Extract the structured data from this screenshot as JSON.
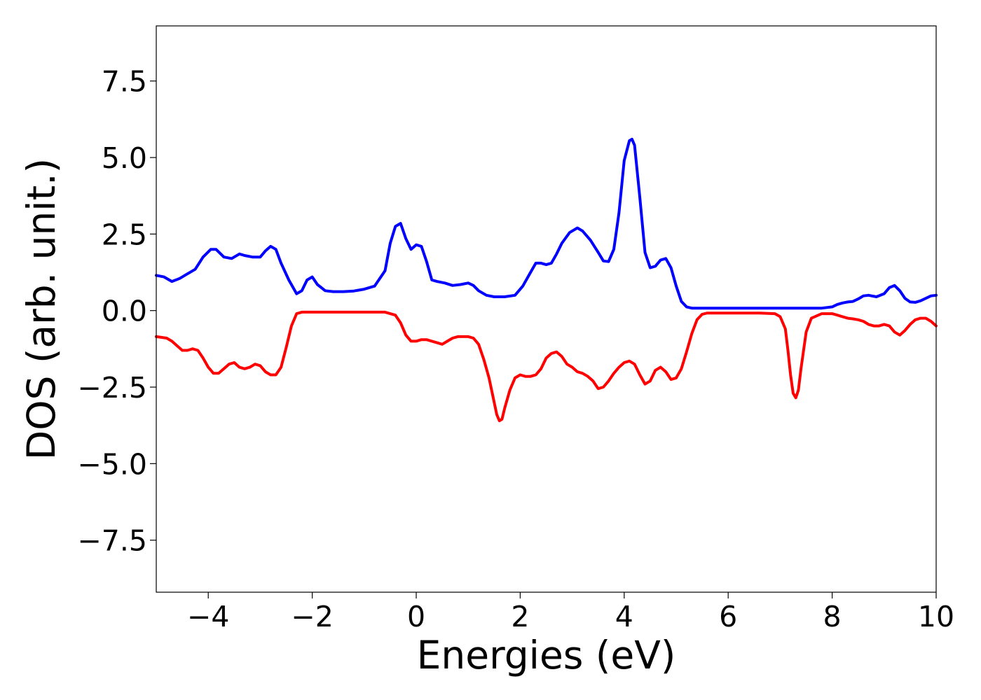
{
  "chart_data": {
    "type": "line",
    "title": "",
    "xlabel": "Energies (eV)",
    "ylabel": "DOS (arb. unit.)",
    "xlim": [
      -5,
      10
    ],
    "ylim": [
      -9.2,
      9.3
    ],
    "grid": false,
    "legend": "none",
    "xticks": [
      -4,
      -2,
      0,
      2,
      4,
      6,
      8,
      10
    ],
    "xtick_labels": [
      "−4",
      "−2",
      "0",
      "2",
      "4",
      "6",
      "8",
      "10"
    ],
    "yticks": [
      -7.5,
      -5.0,
      -2.5,
      0.0,
      2.5,
      5.0,
      7.5
    ],
    "ytick_labels": [
      "−7.5",
      "−5.0",
      "−2.5",
      "0.0",
      "2.5",
      "5.0",
      "7.5"
    ],
    "series": [
      {
        "color": "#0000ff",
        "x": [
          -5.0,
          -4.85,
          -4.7,
          -4.55,
          -4.4,
          -4.25,
          -4.1,
          -3.95,
          -3.85,
          -3.7,
          -3.55,
          -3.4,
          -3.3,
          -3.15,
          -3.0,
          -2.9,
          -2.8,
          -2.7,
          -2.6,
          -2.45,
          -2.3,
          -2.2,
          -2.1,
          -2.0,
          -1.9,
          -1.75,
          -1.6,
          -1.4,
          -1.2,
          -1.0,
          -0.8,
          -0.6,
          -0.5,
          -0.4,
          -0.3,
          -0.2,
          -0.1,
          0.0,
          0.1,
          0.2,
          0.3,
          0.4,
          0.55,
          0.7,
          0.85,
          1.0,
          1.1,
          1.2,
          1.35,
          1.5,
          1.7,
          1.9,
          2.05,
          2.2,
          2.3,
          2.4,
          2.5,
          2.6,
          2.7,
          2.8,
          2.95,
          3.1,
          3.2,
          3.35,
          3.5,
          3.6,
          3.7,
          3.8,
          3.9,
          4.0,
          4.1,
          4.15,
          4.2,
          4.3,
          4.4,
          4.5,
          4.6,
          4.7,
          4.8,
          4.9,
          5.0,
          5.1,
          5.2,
          5.3,
          5.5,
          6.0,
          6.5,
          7.0,
          7.5,
          7.8,
          8.0,
          8.1,
          8.2,
          8.3,
          8.4,
          8.5,
          8.6,
          8.7,
          8.85,
          9.0,
          9.1,
          9.2,
          9.3,
          9.4,
          9.5,
          9.6,
          9.7,
          9.8,
          9.9,
          10.0
        ],
        "y": [
          1.15,
          1.1,
          0.95,
          1.05,
          1.2,
          1.35,
          1.75,
          2.0,
          2.0,
          1.75,
          1.7,
          1.85,
          1.8,
          1.75,
          1.75,
          1.95,
          2.1,
          2.0,
          1.55,
          1.0,
          0.55,
          0.65,
          1.0,
          1.1,
          0.85,
          0.65,
          0.62,
          0.62,
          0.64,
          0.7,
          0.8,
          1.3,
          2.2,
          2.75,
          2.85,
          2.35,
          2.0,
          2.15,
          2.1,
          1.6,
          1.0,
          0.95,
          0.9,
          0.82,
          0.85,
          0.9,
          0.82,
          0.65,
          0.5,
          0.45,
          0.45,
          0.5,
          0.8,
          1.25,
          1.55,
          1.55,
          1.5,
          1.55,
          1.85,
          2.2,
          2.55,
          2.7,
          2.6,
          2.3,
          1.9,
          1.62,
          1.6,
          2.0,
          3.2,
          4.9,
          5.55,
          5.6,
          5.4,
          3.7,
          1.9,
          1.4,
          1.45,
          1.65,
          1.7,
          1.4,
          0.8,
          0.3,
          0.12,
          0.08,
          0.08,
          0.08,
          0.08,
          0.08,
          0.08,
          0.08,
          0.12,
          0.2,
          0.25,
          0.28,
          0.3,
          0.38,
          0.48,
          0.5,
          0.45,
          0.55,
          0.75,
          0.82,
          0.65,
          0.4,
          0.28,
          0.27,
          0.32,
          0.4,
          0.48,
          0.5
        ]
      },
      {
        "color": "#ff0000",
        "x": [
          -5.0,
          -4.8,
          -4.7,
          -4.6,
          -4.5,
          -4.4,
          -4.3,
          -4.2,
          -4.1,
          -4.0,
          -3.9,
          -3.8,
          -3.7,
          -3.6,
          -3.5,
          -3.4,
          -3.3,
          -3.2,
          -3.1,
          -3.0,
          -2.9,
          -2.8,
          -2.7,
          -2.6,
          -2.5,
          -2.4,
          -2.3,
          -2.2,
          -2.1,
          -2.0,
          -1.8,
          -1.5,
          -1.0,
          -0.6,
          -0.4,
          -0.3,
          -0.2,
          -0.1,
          0.0,
          0.1,
          0.2,
          0.3,
          0.4,
          0.5,
          0.6,
          0.7,
          0.8,
          0.9,
          1.0,
          1.1,
          1.2,
          1.3,
          1.4,
          1.5,
          1.55,
          1.6,
          1.65,
          1.7,
          1.8,
          1.9,
          2.0,
          2.1,
          2.2,
          2.3,
          2.4,
          2.5,
          2.6,
          2.7,
          2.8,
          2.9,
          3.0,
          3.1,
          3.2,
          3.3,
          3.4,
          3.5,
          3.6,
          3.7,
          3.8,
          3.9,
          4.0,
          4.1,
          4.2,
          4.3,
          4.4,
          4.5,
          4.6,
          4.7,
          4.8,
          4.9,
          5.0,
          5.1,
          5.2,
          5.3,
          5.4,
          5.5,
          5.6,
          5.8,
          6.2,
          6.6,
          6.9,
          7.0,
          7.1,
          7.15,
          7.2,
          7.25,
          7.3,
          7.35,
          7.4,
          7.5,
          7.6,
          7.8,
          8.0,
          8.1,
          8.2,
          8.3,
          8.4,
          8.5,
          8.6,
          8.7,
          8.8,
          8.9,
          9.0,
          9.1,
          9.2,
          9.3,
          9.4,
          9.5,
          9.6,
          9.7,
          9.8,
          9.9,
          10.0
        ],
        "y": [
          -0.85,
          -0.9,
          -1.0,
          -1.15,
          -1.3,
          -1.3,
          -1.25,
          -1.3,
          -1.55,
          -1.85,
          -2.05,
          -2.05,
          -1.9,
          -1.75,
          -1.7,
          -1.85,
          -1.9,
          -1.85,
          -1.75,
          -1.8,
          -2.0,
          -2.1,
          -2.1,
          -1.85,
          -1.2,
          -0.5,
          -0.1,
          -0.05,
          -0.05,
          -0.05,
          -0.05,
          -0.05,
          -0.05,
          -0.05,
          -0.15,
          -0.4,
          -0.8,
          -1.0,
          -1.0,
          -0.95,
          -0.95,
          -1.0,
          -1.05,
          -1.1,
          -1.0,
          -0.9,
          -0.85,
          -0.85,
          -0.85,
          -0.9,
          -1.1,
          -1.6,
          -2.2,
          -3.0,
          -3.4,
          -3.6,
          -3.55,
          -3.2,
          -2.6,
          -2.2,
          -2.1,
          -2.15,
          -2.15,
          -2.1,
          -1.9,
          -1.55,
          -1.4,
          -1.35,
          -1.5,
          -1.75,
          -1.85,
          -2.0,
          -2.05,
          -2.15,
          -2.3,
          -2.55,
          -2.5,
          -2.3,
          -2.05,
          -1.85,
          -1.7,
          -1.65,
          -1.75,
          -2.1,
          -2.4,
          -2.3,
          -1.95,
          -1.85,
          -2.0,
          -2.25,
          -2.2,
          -1.9,
          -1.35,
          -0.75,
          -0.3,
          -0.12,
          -0.08,
          -0.08,
          -0.08,
          -0.08,
          -0.1,
          -0.2,
          -0.6,
          -1.3,
          -2.1,
          -2.7,
          -2.85,
          -2.6,
          -1.9,
          -0.7,
          -0.25,
          -0.1,
          -0.1,
          -0.15,
          -0.2,
          -0.25,
          -0.27,
          -0.3,
          -0.35,
          -0.45,
          -0.5,
          -0.5,
          -0.45,
          -0.5,
          -0.7,
          -0.8,
          -0.65,
          -0.45,
          -0.3,
          -0.25,
          -0.25,
          -0.35,
          -0.5
        ]
      }
    ]
  }
}
